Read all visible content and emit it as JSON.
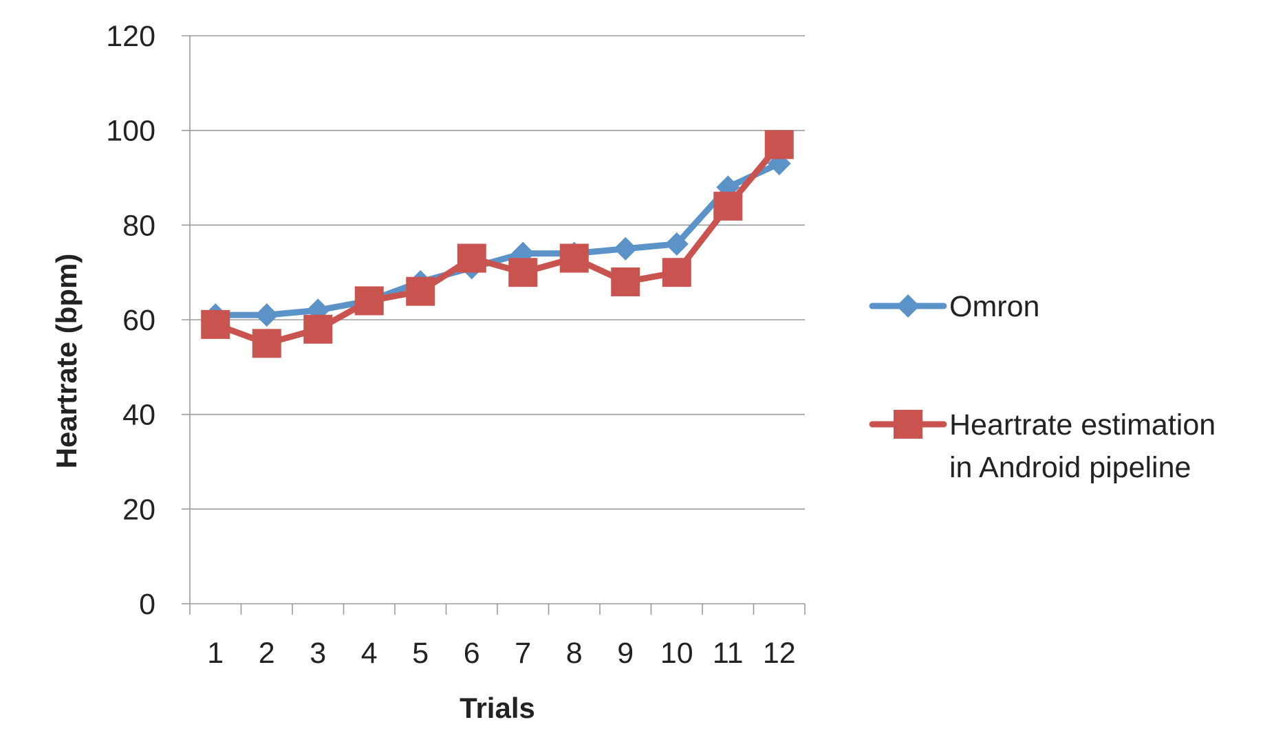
{
  "chart_data": {
    "type": "line",
    "title": "",
    "xlabel": "Trials",
    "ylabel": "Heartrate (bpm)",
    "categories": [
      "1",
      "2",
      "3",
      "4",
      "5",
      "6",
      "7",
      "8",
      "9",
      "10",
      "11",
      "12"
    ],
    "ylim": [
      0,
      120
    ],
    "yticks": [
      "0",
      "20",
      "40",
      "60",
      "80",
      "100",
      "120"
    ],
    "grid": true,
    "legend_position": "right",
    "series": [
      {
        "name": "Omron",
        "marker": "diamond",
        "color": "#5B93C9",
        "values": [
          61,
          61,
          62,
          64,
          68,
          71,
          74,
          74,
          75,
          76,
          88,
          93
        ]
      },
      {
        "name": "Heartrate estimation in Android pipeline",
        "name_lines": [
          "Heartrate estimation",
          "in Android pipeline"
        ],
        "marker": "square",
        "color": "#C9544F",
        "values": [
          59,
          55,
          58,
          64,
          66,
          73,
          70,
          73,
          68,
          70,
          84,
          97
        ]
      }
    ]
  }
}
